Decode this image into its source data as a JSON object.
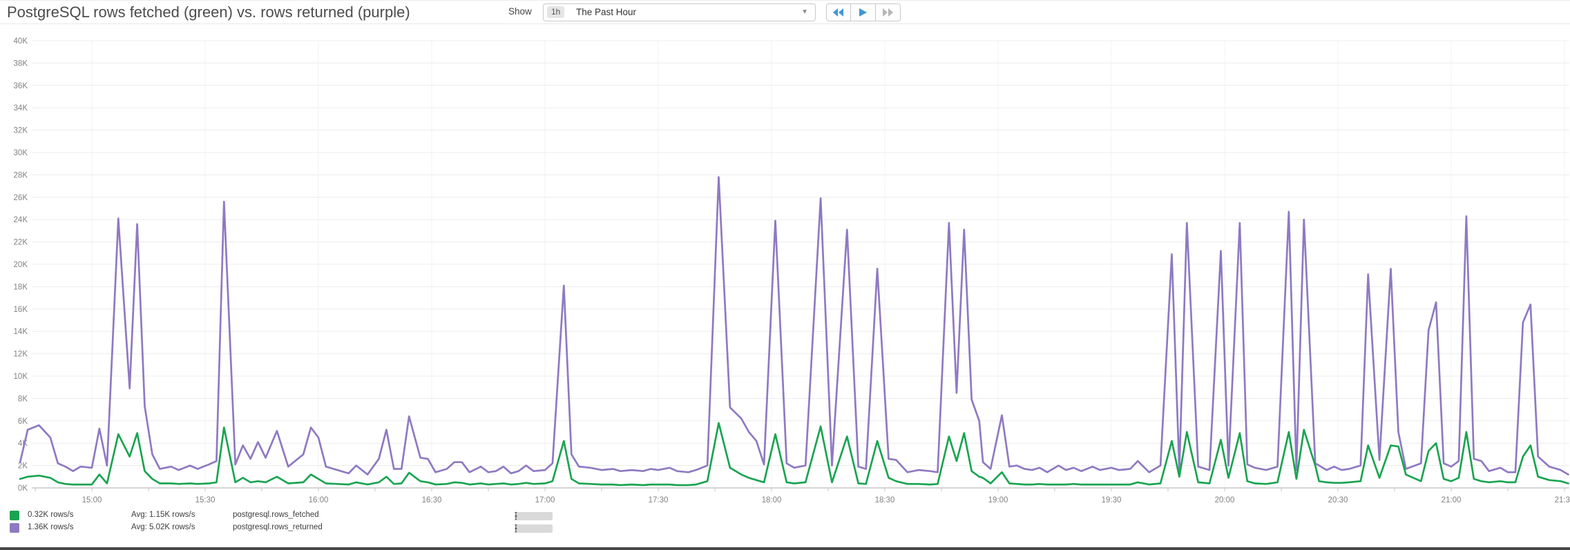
{
  "header": {
    "title": "PostgreSQL rows fetched (green) vs. rows returned (purple)",
    "show_label": "Show",
    "timeframe_badge": "1h",
    "timeframe_label": "The Past Hour",
    "caret": "▼"
  },
  "legend": {
    "rows": [
      {
        "value": "0.32K rows/s",
        "avg": "Avg: 1.15K rows/s",
        "metric": "postgresql.rows_fetched",
        "scope_prefix": "{db:",
        "scope_suffix": "}"
      },
      {
        "value": "1.36K rows/s",
        "avg": "Avg: 5.02K rows/s",
        "metric": "postgresql.rows_returned",
        "scope_prefix": "{db:",
        "scope_suffix": "}"
      }
    ]
  },
  "chart_data": {
    "type": "line",
    "title": "PostgreSQL rows fetched (green) vs. rows returned (purple)",
    "x_unit": "minutes_since_midnight",
    "y_unit": "K rows/s",
    "ylim": [
      0,
      40
    ],
    "y_tick_step": 2,
    "grid": true,
    "legend_position": "bottom-left",
    "y_tick_labels": [
      "0K",
      "2K",
      "4K",
      "6K",
      "8K",
      "10K",
      "12K",
      "14K",
      "16K",
      "18K",
      "20K",
      "22K",
      "24K",
      "26K",
      "28K",
      "30K",
      "32K",
      "34K",
      "36K",
      "38K",
      "40K"
    ],
    "x_ticks": [
      {
        "t": 900,
        "label": "15:00"
      },
      {
        "t": 930,
        "label": "15:30"
      },
      {
        "t": 960,
        "label": "16:00"
      },
      {
        "t": 990,
        "label": "16:30"
      },
      {
        "t": 1020,
        "label": "17:00"
      },
      {
        "t": 1050,
        "label": "17:30"
      },
      {
        "t": 1080,
        "label": "18:00"
      },
      {
        "t": 1110,
        "label": "18:30"
      },
      {
        "t": 1140,
        "label": "19:00"
      },
      {
        "t": 1170,
        "label": "19:30"
      },
      {
        "t": 1200,
        "label": "20:00"
      },
      {
        "t": 1230,
        "label": "20:30"
      },
      {
        "t": 1260,
        "label": "21:00"
      },
      {
        "t": 1290,
        "label": "21:30"
      }
    ],
    "x": [
      881,
      883,
      886,
      889,
      891,
      893,
      895,
      897,
      900,
      902,
      904,
      907,
      910,
      912,
      914,
      916,
      918,
      921,
      923,
      926,
      928,
      931,
      933,
      935,
      938,
      940,
      942,
      944,
      946,
      949,
      952,
      956,
      958,
      960,
      962,
      965,
      968,
      970,
      973,
      976,
      978,
      980,
      982,
      984,
      987,
      989,
      991,
      994,
      996,
      998,
      1000,
      1003,
      1005,
      1007,
      1009,
      1011,
      1013,
      1015,
      1017,
      1020,
      1022,
      1025,
      1027,
      1029,
      1032,
      1035,
      1038,
      1040,
      1043,
      1046,
      1048,
      1050,
      1053,
      1055,
      1058,
      1060,
      1063,
      1066,
      1069,
      1072,
      1074,
      1076,
      1078,
      1081,
      1084,
      1086,
      1089,
      1093,
      1096,
      1100,
      1103,
      1105,
      1108,
      1111,
      1113,
      1116,
      1119,
      1122,
      1124,
      1127,
      1129,
      1131,
      1133,
      1135,
      1136,
      1138,
      1141,
      1143,
      1145,
      1147,
      1149,
      1151,
      1153,
      1156,
      1158,
      1160,
      1162,
      1165,
      1167,
      1170,
      1172,
      1175,
      1177,
      1180,
      1183,
      1186,
      1188,
      1190,
      1193,
      1196,
      1199,
      1201,
      1204,
      1206,
      1208,
      1211,
      1214,
      1217,
      1219,
      1221,
      1224,
      1225,
      1227,
      1229,
      1231,
      1233,
      1236,
      1238,
      1241,
      1244,
      1246,
      1248,
      1252,
      1254,
      1256,
      1258,
      1260,
      1262,
      1264,
      1266,
      1268,
      1270,
      1273,
      1275,
      1277,
      1279,
      1281,
      1283,
      1286,
      1289,
      1291
    ],
    "series": [
      {
        "name": "postgresql.rows_fetched",
        "color": "#1aa450",
        "current": "0.32K rows/s",
        "avg": "1.15K rows/s",
        "values": [
          0.8,
          1.0,
          1.1,
          0.9,
          0.5,
          0.35,
          0.3,
          0.3,
          0.3,
          1.2,
          0.4,
          4.8,
          2.8,
          4.9,
          1.5,
          0.8,
          0.4,
          0.4,
          0.35,
          0.4,
          0.35,
          0.4,
          0.5,
          5.4,
          0.5,
          0.9,
          0.5,
          0.6,
          0.5,
          1.0,
          0.4,
          0.5,
          1.2,
          0.8,
          0.4,
          0.35,
          0.3,
          0.5,
          0.3,
          0.5,
          1.0,
          0.35,
          0.4,
          1.35,
          0.6,
          0.5,
          0.3,
          0.35,
          0.5,
          0.45,
          0.3,
          0.4,
          0.3,
          0.35,
          0.4,
          0.3,
          0.35,
          0.45,
          0.35,
          0.4,
          0.6,
          4.2,
          0.8,
          0.4,
          0.35,
          0.3,
          0.3,
          0.25,
          0.3,
          0.25,
          0.3,
          0.3,
          0.3,
          0.25,
          0.25,
          0.3,
          0.6,
          5.8,
          1.8,
          1.2,
          0.9,
          0.7,
          0.5,
          4.8,
          0.5,
          0.4,
          0.5,
          5.5,
          0.5,
          4.6,
          0.4,
          0.35,
          4.2,
          0.9,
          0.6,
          0.35,
          0.35,
          0.3,
          0.35,
          4.6,
          2.4,
          4.9,
          1.5,
          1.0,
          0.9,
          0.4,
          1.4,
          0.4,
          0.35,
          0.3,
          0.3,
          0.35,
          0.3,
          0.3,
          0.3,
          0.35,
          0.3,
          0.3,
          0.3,
          0.3,
          0.3,
          0.3,
          0.5,
          0.3,
          0.4,
          4.2,
          1.0,
          5.0,
          0.5,
          0.4,
          4.3,
          0.9,
          4.9,
          0.6,
          0.4,
          0.35,
          0.5,
          5.0,
          0.8,
          5.2,
          2.0,
          0.6,
          0.5,
          0.45,
          0.45,
          0.5,
          0.6,
          3.8,
          0.9,
          3.8,
          3.7,
          1.2,
          0.6,
          3.3,
          4.0,
          0.8,
          0.6,
          0.9,
          5.0,
          0.8,
          0.6,
          0.5,
          0.6,
          0.5,
          0.5,
          2.8,
          3.8,
          1.0,
          0.7,
          0.6,
          0.4
        ]
      },
      {
        "name": "postgresql.rows_returned",
        "color": "#8f79c2",
        "current": "1.36K rows/s",
        "avg": "5.02K rows/s",
        "values": [
          2.3,
          5.2,
          5.6,
          4.5,
          2.2,
          1.9,
          1.5,
          1.9,
          1.8,
          5.3,
          2.0,
          24.1,
          8.9,
          23.6,
          7.3,
          3.0,
          1.7,
          1.9,
          1.6,
          2.0,
          1.7,
          2.1,
          2.4,
          25.6,
          2.1,
          3.8,
          2.6,
          4.1,
          2.7,
          5.1,
          1.9,
          3.0,
          5.4,
          4.5,
          1.9,
          1.6,
          1.3,
          2.0,
          1.2,
          2.6,
          5.2,
          1.7,
          1.7,
          6.4,
          2.7,
          2.6,
          1.4,
          1.7,
          2.3,
          2.3,
          1.4,
          1.9,
          1.4,
          1.5,
          1.9,
          1.3,
          1.5,
          2.0,
          1.5,
          1.6,
          2.2,
          18.1,
          3.0,
          1.9,
          1.8,
          1.6,
          1.7,
          1.5,
          1.6,
          1.5,
          1.7,
          1.6,
          1.8,
          1.5,
          1.4,
          1.6,
          2.0,
          27.8,
          7.2,
          6.2,
          5.0,
          4.2,
          2.1,
          23.9,
          2.2,
          1.8,
          2.0,
          25.9,
          2.0,
          23.1,
          1.9,
          1.7,
          19.6,
          2.6,
          2.5,
          1.4,
          1.6,
          1.5,
          1.4,
          23.7,
          8.5,
          23.1,
          7.9,
          6.0,
          2.3,
          1.7,
          6.5,
          1.9,
          2.0,
          1.7,
          1.6,
          1.8,
          1.4,
          2.0,
          1.6,
          1.8,
          1.5,
          1.9,
          1.6,
          1.8,
          1.6,
          1.7,
          2.4,
          1.4,
          2.0,
          20.9,
          1.6,
          23.7,
          1.9,
          1.6,
          21.2,
          2.0,
          23.7,
          2.1,
          1.8,
          1.6,
          1.9,
          24.7,
          1.6,
          24.0,
          2.2,
          2.0,
          1.6,
          1.9,
          1.6,
          1.7,
          2.0,
          19.1,
          2.5,
          19.6,
          5.0,
          1.7,
          2.2,
          14.1,
          16.6,
          2.2,
          1.9,
          2.4,
          24.3,
          2.6,
          2.4,
          1.5,
          1.8,
          1.4,
          1.4,
          14.8,
          16.4,
          2.8,
          1.9,
          1.6,
          1.2
        ]
      }
    ]
  }
}
